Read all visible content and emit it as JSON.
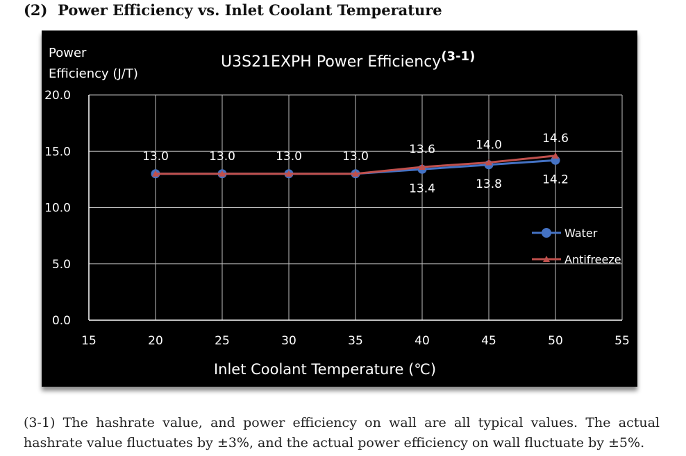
{
  "section": {
    "number": "(2)",
    "title": "Power Efficiency vs. Inlet Coolant Temperature"
  },
  "chart_data": {
    "type": "line",
    "title": "U3S21EXPH Power Efficiency",
    "title_superscript": "(3-1)",
    "ylabel_line1": "Power",
    "ylabel_line2": "Efficiency (J/T)",
    "xlabel": "Inlet Coolant Temperature (℃)",
    "xlim": [
      15,
      55
    ],
    "ylim": [
      0,
      20
    ],
    "x_ticks": [
      "15",
      "20",
      "25",
      "30",
      "35",
      "40",
      "45",
      "50",
      "55"
    ],
    "x_tick_values": [
      15,
      20,
      25,
      30,
      35,
      40,
      45,
      50,
      55
    ],
    "y_ticks": [
      "0.0",
      "5.0",
      "10.0",
      "15.0",
      "20.0"
    ],
    "y_tick_values": [
      0,
      5,
      10,
      15,
      20
    ],
    "grid": true,
    "legend_position": "right",
    "x": [
      20,
      25,
      30,
      35,
      40,
      45,
      50
    ],
    "series": [
      {
        "name": "Water",
        "color": "#4472c4",
        "marker": "circle",
        "values": [
          13.0,
          13.0,
          13.0,
          13.0,
          13.4,
          13.8,
          14.2
        ],
        "labels": [
          "13.0",
          "13.0",
          "13.0",
          "13.0",
          "13.4",
          "13.8",
          "14.2"
        ],
        "label_position": [
          "above",
          "above",
          "above",
          "above",
          "below",
          "below",
          "below"
        ]
      },
      {
        "name": "Antifreeze",
        "color": "#c0504d",
        "marker": "triangle",
        "values": [
          13.0,
          13.0,
          13.0,
          13.0,
          13.6,
          14.0,
          14.6
        ],
        "labels": [
          "",
          "",
          "",
          "",
          "13.6",
          "14.0",
          "14.6"
        ],
        "label_position": [
          "above",
          "above",
          "above",
          "above",
          "above",
          "above",
          "above"
        ]
      }
    ]
  },
  "footnote": "(3-1) The hashrate value, and power efficiency on wall are all typical values. The actual hashrate value fluctuates by ±3%, and the actual power efficiency on wall fluctuate by ±5%."
}
